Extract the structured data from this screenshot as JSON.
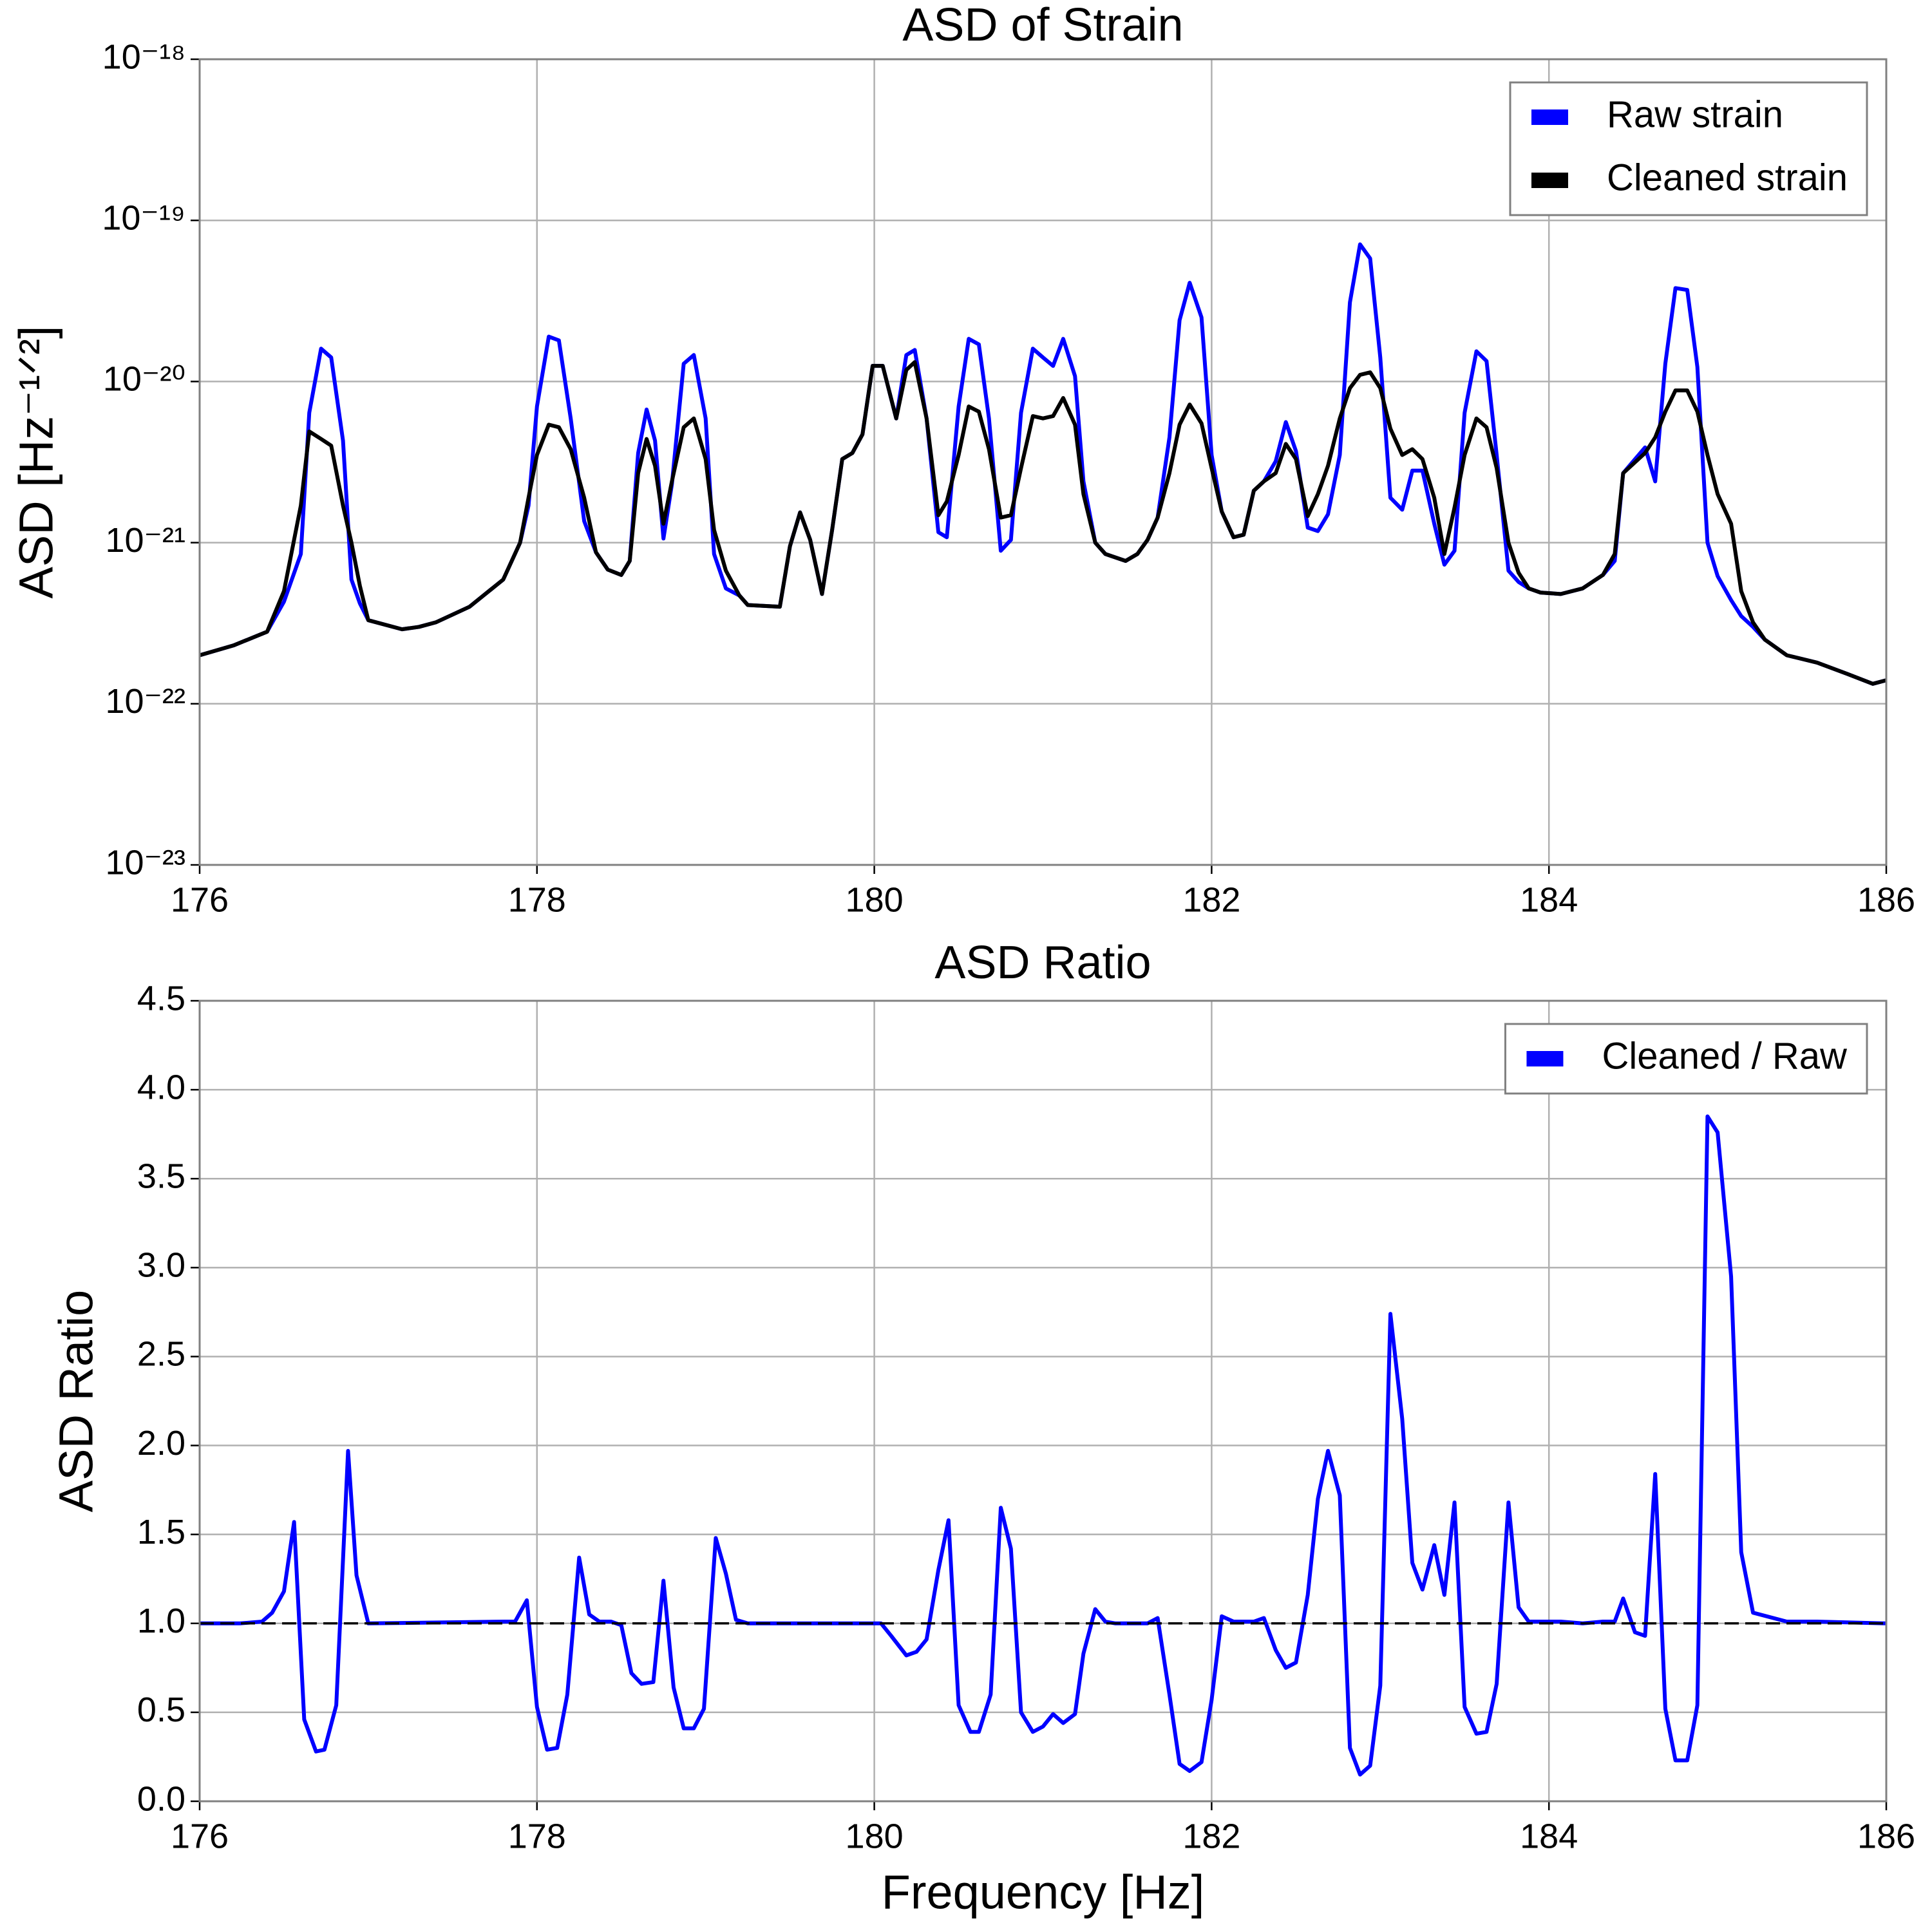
{
  "chart_data": [
    {
      "type": "line",
      "title": "ASD of Strain",
      "ylabel": "ASD [Hz⁻¹ᐟ²]",
      "yscale": "log",
      "grid": true,
      "legend": "upper right",
      "xlim": [
        176,
        186
      ],
      "xticks": [
        176,
        178,
        180,
        182,
        184,
        186
      ],
      "ylim": [
        1e-23,
        1e-18
      ],
      "yticks": [
        {
          "value": 1e-23,
          "label": "10⁻²³"
        },
        {
          "value": 1e-22,
          "label": "10⁻²²"
        },
        {
          "value": 1e-21,
          "label": "10⁻²¹"
        },
        {
          "value": 1e-20,
          "label": "10⁻²⁰"
        },
        {
          "value": 1e-19,
          "label": "10⁻¹⁹"
        },
        {
          "value": 1e-18,
          "label": "10⁻¹⁸"
        }
      ],
      "x": [
        176.0,
        176.2,
        176.4,
        176.5,
        176.6,
        176.65,
        176.72,
        176.78,
        176.85,
        176.9,
        176.95,
        177.0,
        177.2,
        177.3,
        177.4,
        177.6,
        177.8,
        177.9,
        177.95,
        178.0,
        178.07,
        178.13,
        178.2,
        178.28,
        178.35,
        178.42,
        178.5,
        178.55,
        178.6,
        178.65,
        178.7,
        178.75,
        178.8,
        178.87,
        178.93,
        179.0,
        179.05,
        179.12,
        179.2,
        179.25,
        179.44,
        179.5,
        179.56,
        179.62,
        179.69,
        179.75,
        179.81,
        179.87,
        179.93,
        179.99,
        180.05,
        180.13,
        180.19,
        180.24,
        180.31,
        180.38,
        180.43,
        180.5,
        180.56,
        180.62,
        180.68,
        180.75,
        180.81,
        180.87,
        180.94,
        181.0,
        181.06,
        181.12,
        181.19,
        181.24,
        181.31,
        181.37,
        181.49,
        181.56,
        181.62,
        181.68,
        181.75,
        181.81,
        181.87,
        181.94,
        182.0,
        182.06,
        182.13,
        182.19,
        182.25,
        182.31,
        182.38,
        182.44,
        182.5,
        182.57,
        182.63,
        182.69,
        182.76,
        182.82,
        182.88,
        182.94,
        183.0,
        183.06,
        183.13,
        183.19,
        183.25,
        183.32,
        183.38,
        183.44,
        183.5,
        183.57,
        183.63,
        183.69,
        183.76,
        183.82,
        183.88,
        183.95,
        184.07,
        184.2,
        184.32,
        184.39,
        184.44,
        184.57,
        184.63,
        184.69,
        184.75,
        184.82,
        184.88,
        184.94,
        185.0,
        185.08,
        185.14,
        185.21,
        185.28,
        185.41,
        185.59,
        185.77,
        185.92,
        186.0
      ],
      "series": [
        {
          "name": "Raw strain",
          "color": "#0000ff",
          "values": [
            2e-22,
            2.3e-22,
            2.8e-22,
            4.3e-22,
            8.5e-22,
            6.4e-21,
            1.6e-20,
            1.41e-20,
            4.3e-21,
            5.9e-22,
            4.2e-22,
            3.3e-22,
            2.9e-22,
            3e-22,
            3.2e-22,
            4e-22,
            5.9e-22,
            1e-21,
            1.7e-21,
            7e-21,
            1.9e-20,
            1.8e-20,
            5.9e-21,
            1.36e-21,
            8.7e-22,
            6.8e-22,
            6.3e-22,
            7.7e-22,
            3.6e-21,
            6.7e-21,
            4.3e-21,
            1.06e-21,
            2.3e-21,
            1.29e-20,
            1.46e-20,
            5.9e-21,
            8.5e-22,
            5.2e-22,
            4.7e-22,
            4.1e-22,
            4e-22,
            9.5e-22,
            1.54e-21,
            1.04e-21,
            4.8e-22,
            1.2e-21,
            3.3e-21,
            3.6e-21,
            4.7e-21,
            1.25e-20,
            1.25e-20,
            5.9e-21,
            1.46e-20,
            1.57e-20,
            5.9e-21,
            1.16e-21,
            1.08e-21,
            7e-21,
            1.84e-20,
            1.7e-20,
            5.9e-21,
            8.9e-22,
            1.04e-21,
            6.4e-21,
            1.6e-20,
            1.41e-20,
            1.25e-20,
            1.84e-20,
            1.08e-20,
            2.4e-21,
            1e-21,
            8.5e-22,
            7.7e-22,
            8.5e-22,
            1.04e-21,
            1.43e-21,
            4.5e-21,
            2.4e-20,
            4.1e-20,
            2.5e-20,
            3.5e-21,
            1.56e-21,
            1.08e-21,
            1.12e-21,
            2.1e-21,
            2.4e-21,
            3.2e-21,
            5.6e-21,
            3.7e-21,
            1.24e-21,
            1.18e-21,
            1.5e-21,
            3.5e-21,
            3.1e-20,
            7.1e-20,
            5.8e-20,
            1.41e-20,
            1.9e-21,
            1.6e-21,
            2.8e-21,
            2.8e-21,
            1.31e-21,
            7.3e-22,
            8.9e-22,
            6.4e-21,
            1.54e-20,
            1.34e-20,
            3.5e-21,
            6.7e-22,
            5.7e-22,
            5.2e-22,
            4.9e-22,
            4.8e-22,
            5.2e-22,
            6.3e-22,
            7.7e-22,
            2.7e-21,
            3.9e-21,
            2.4e-21,
            1.29e-20,
            3.8e-20,
            3.7e-20,
            1.23e-20,
            1e-21,
            6.2e-22,
            4.4e-22,
            3.5e-22,
            3e-22,
            2.5e-22,
            2e-22,
            1.8e-22,
            1.53e-22,
            1.33e-22,
            1.4e-22
          ]
        },
        {
          "name": "Cleaned strain",
          "color": "#000000",
          "values": [
            2e-22,
            2.3e-22,
            2.8e-22,
            5e-22,
            1.7e-21,
            4.9e-21,
            4.4e-21,
            4e-21,
            1.7e-21,
            1e-21,
            5.4e-22,
            3.3e-22,
            2.9e-22,
            3e-22,
            3.2e-22,
            4e-22,
            5.9e-22,
            1e-21,
            1.9e-21,
            3.5e-21,
            5.4e-21,
            5.2e-21,
            3.8e-21,
            1.9e-21,
            8.7e-22,
            6.8e-22,
            6.3e-22,
            7.7e-22,
            2.7e-21,
            4.4e-21,
            3e-21,
            1.31e-21,
            2.4e-21,
            5.2e-21,
            5.9e-21,
            3.3e-21,
            1.2e-21,
            6.7e-22,
            4.7e-22,
            4.1e-22,
            4e-22,
            9.5e-22,
            1.54e-21,
            1.04e-21,
            4.8e-22,
            1.2e-21,
            3.3e-21,
            3.6e-21,
            4.7e-21,
            1.25e-20,
            1.25e-20,
            5.9e-21,
            1.18e-20,
            1.32e-20,
            5.9e-21,
            1.48e-21,
            1.8e-21,
            3.5e-21,
            7e-21,
            6.5e-21,
            3.8e-21,
            1.43e-21,
            1.48e-21,
            2.9e-21,
            6.1e-21,
            5.9e-21,
            6.1e-21,
            7.9e-21,
            5.4e-21,
            2e-21,
            1e-21,
            8.5e-22,
            7.7e-22,
            8.5e-22,
            1.04e-21,
            1.43e-21,
            2.7e-21,
            5.4e-21,
            7.2e-21,
            5.5e-21,
            2.9e-21,
            1.56e-21,
            1.08e-21,
            1.12e-21,
            2.1e-21,
            2.4e-21,
            2.7e-21,
            4.1e-21,
            3.3e-21,
            1.46e-21,
            2e-21,
            3e-21,
            5.9e-21,
            9.1e-21,
            1.1e-20,
            1.14e-20,
            9.1e-21,
            5.1e-21,
            3.5e-21,
            3.8e-21,
            3.3e-21,
            1.9e-21,
            8.5e-22,
            1.65e-21,
            3.5e-21,
            5.9e-21,
            5.2e-21,
            2.9e-21,
            1e-21,
            6.5e-22,
            5.2e-22,
            4.9e-22,
            4.8e-22,
            5.2e-22,
            6.3e-22,
            8.5e-22,
            2.7e-21,
            3.6e-21,
            4.5e-21,
            6.5e-21,
            8.8e-21,
            8.8e-21,
            6.5e-21,
            3.5e-21,
            2e-21,
            1.31e-21,
            5e-22,
            3.2e-22,
            2.5e-22,
            2e-22,
            1.8e-22,
            1.53e-22,
            1.33e-22,
            1.4e-22
          ]
        }
      ]
    },
    {
      "type": "line",
      "title": "ASD Ratio",
      "xlabel": "Frequency [Hz]",
      "ylabel": "ASD Ratio",
      "yscale": "linear",
      "grid": true,
      "legend": "upper right",
      "xlim": [
        176,
        186
      ],
      "xticks": [
        176,
        178,
        180,
        182,
        184,
        186
      ],
      "ylim": [
        0,
        4.5
      ],
      "yticks": [
        {
          "value": 0,
          "label": "0.0"
        },
        0.5,
        {
          "value": 1,
          "label": "1.0"
        },
        1.5,
        {
          "value": 2,
          "label": "2.0"
        },
        2.5,
        {
          "value": 3,
          "label": "3.0"
        },
        3.5,
        {
          "value": 4,
          "label": "4.0"
        },
        4.5
      ],
      "hline": {
        "value": 1,
        "color": "#000000",
        "style": "dashed"
      },
      "x": [
        176.0,
        176.24,
        176.37,
        176.43,
        176.5,
        176.56,
        176.62,
        176.69,
        176.74,
        176.81,
        176.88,
        176.93,
        177.0,
        177.81,
        177.87,
        177.94,
        178.0,
        178.06,
        178.12,
        178.18,
        178.25,
        178.31,
        178.37,
        178.44,
        178.5,
        178.56,
        178.62,
        178.69,
        178.75,
        178.81,
        178.87,
        178.93,
        178.99,
        179.06,
        179.12,
        179.18,
        179.25,
        180.04,
        180.1,
        180.19,
        180.25,
        180.31,
        180.38,
        180.44,
        180.5,
        180.57,
        180.62,
        180.69,
        180.75,
        180.81,
        180.87,
        180.94,
        181.0,
        181.06,
        181.12,
        181.19,
        181.24,
        181.31,
        181.37,
        181.43,
        181.62,
        181.68,
        181.75,
        181.81,
        181.87,
        181.94,
        182.0,
        182.06,
        182.13,
        182.25,
        182.31,
        182.38,
        182.44,
        182.5,
        182.57,
        182.63,
        182.69,
        182.76,
        182.82,
        182.88,
        182.94,
        183.0,
        183.06,
        183.13,
        183.19,
        183.25,
        183.32,
        183.38,
        183.44,
        183.5,
        183.57,
        183.63,
        183.69,
        183.76,
        183.82,
        183.88,
        183.95,
        184.07,
        184.2,
        184.32,
        184.39,
        184.44,
        184.51,
        184.57,
        184.63,
        184.69,
        184.75,
        184.82,
        184.88,
        184.94,
        185.0,
        185.08,
        185.14,
        185.21,
        185.41,
        185.59,
        186.0
      ],
      "series": [
        {
          "name": "Cleaned / Raw",
          "color": "#0000ff",
          "values": [
            1.0,
            1.0,
            1.01,
            1.06,
            1.18,
            1.57,
            0.46,
            0.28,
            0.29,
            0.54,
            1.97,
            1.27,
            1.0,
            1.01,
            1.01,
            1.13,
            0.53,
            0.29,
            0.3,
            0.6,
            1.37,
            1.05,
            1.01,
            1.01,
            0.99,
            0.72,
            0.66,
            0.67,
            1.24,
            0.64,
            0.41,
            0.41,
            0.52,
            1.48,
            1.28,
            1.02,
            1.0,
            1.0,
            0.93,
            0.82,
            0.84,
            0.91,
            1.3,
            1.58,
            0.54,
            0.39,
            0.39,
            0.6,
            1.65,
            1.42,
            0.5,
            0.39,
            0.42,
            0.49,
            0.44,
            0.49,
            0.83,
            1.08,
            1.01,
            1.0,
            1.0,
            1.03,
            0.6,
            0.21,
            0.17,
            0.22,
            0.57,
            1.04,
            1.01,
            1.01,
            1.03,
            0.85,
            0.75,
            0.78,
            1.16,
            1.7,
            1.97,
            1.72,
            0.3,
            0.15,
            0.2,
            0.65,
            2.74,
            2.15,
            1.34,
            1.19,
            1.44,
            1.16,
            1.68,
            0.53,
            0.38,
            0.39,
            0.66,
            1.68,
            1.09,
            1.01,
            1.01,
            1.01,
            1.0,
            1.01,
            1.01,
            1.14,
            0.95,
            0.93,
            1.84,
            0.52,
            0.23,
            0.23,
            0.54,
            3.85,
            3.76,
            2.95,
            1.4,
            1.06,
            1.01,
            1.01,
            1.0
          ]
        }
      ]
    }
  ]
}
